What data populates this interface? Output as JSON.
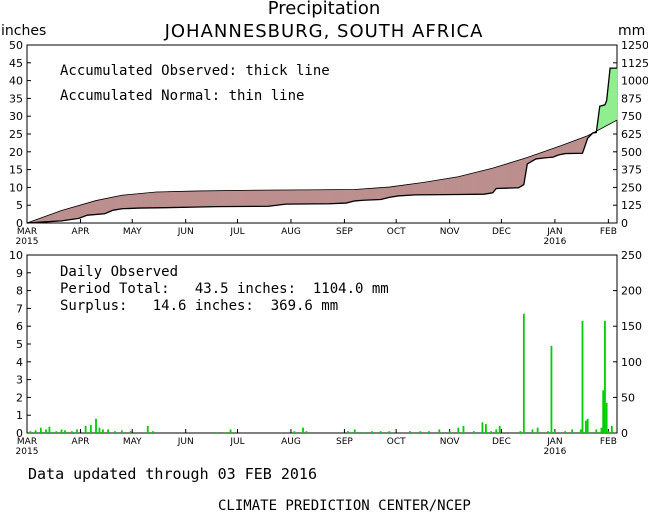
{
  "title": "Precipitation",
  "subtitle": "JOHANNESBURG, SOUTH AFRICA",
  "units_left": "inches",
  "units_right": "mm",
  "footer": {
    "updated": "Data updated through 03 FEB 2016",
    "credit": "CLIMATE PREDICTION CENTER/NCEP"
  },
  "colors": {
    "deficit_fill": "#bc8f8f",
    "surplus_fill": "#90ee90",
    "daily_bars": "#00cc00",
    "line": "#000000"
  },
  "chart_data": [
    {
      "type": "area",
      "annotations": [
        "Accumulated Observed: thick line",
        "Accumulated Normal: thin line"
      ],
      "x_tick_labels": [
        "MAR",
        "APR",
        "MAY",
        "JUN",
        "JUL",
        "AUG",
        "SEP",
        "OCT",
        "NOV",
        "DEC",
        "JAN",
        "FEB"
      ],
      "x_year_labels": [
        {
          "after": "MAR",
          "text": "2015"
        },
        {
          "after": "JAN",
          "text": "2016"
        }
      ],
      "xlim_days": [
        0,
        342
      ],
      "ylim_left": [
        0,
        50
      ],
      "ylim_right": [
        0,
        1250
      ],
      "y_ticks_left": [
        0,
        5,
        10,
        15,
        20,
        25,
        30,
        35,
        40,
        45,
        50
      ],
      "y_ticks_right": [
        0,
        125,
        250,
        375,
        500,
        625,
        750,
        875,
        1000,
        1125,
        1250
      ],
      "series": [
        {
          "role": "observed",
          "points": [
            [
              0,
              0
            ],
            [
              10,
              0.3
            ],
            [
              20,
              0.6
            ],
            [
              30,
              1.3
            ],
            [
              35,
              2.2
            ],
            [
              45,
              2.6
            ],
            [
              50,
              3.6
            ],
            [
              55,
              4.0
            ],
            [
              65,
              4.2
            ],
            [
              80,
              4.3
            ],
            [
              100,
              4.5
            ],
            [
              110,
              4.6
            ],
            [
              140,
              4.7
            ],
            [
              150,
              5.3
            ],
            [
              175,
              5.4
            ],
            [
              185,
              5.6
            ],
            [
              190,
              6.2
            ],
            [
              195,
              6.4
            ],
            [
              205,
              6.6
            ],
            [
              210,
              7.2
            ],
            [
              215,
              7.6
            ],
            [
              225,
              7.9
            ],
            [
              250,
              8.0
            ],
            [
              265,
              8.1
            ],
            [
              270,
              8.5
            ],
            [
              272,
              9.7
            ],
            [
              285,
              9.9
            ],
            [
              288,
              10.8
            ],
            [
              290,
              16.6
            ],
            [
              295,
              18.0
            ],
            [
              300,
              18.3
            ],
            [
              305,
              18.5
            ],
            [
              308,
              19.1
            ],
            [
              312,
              19.5
            ],
            [
              322,
              19.6
            ],
            [
              325,
              23.8
            ],
            [
              328,
              25.3
            ],
            [
              330,
              25.4
            ],
            [
              332,
              32.8
            ],
            [
              335,
              33.2
            ],
            [
              336,
              34.4
            ],
            [
              338,
              43.5
            ],
            [
              342,
              43.5
            ]
          ]
        },
        {
          "role": "normal",
          "points": [
            [
              0,
              0
            ],
            [
              20,
              3.5
            ],
            [
              40,
              6.3
            ],
            [
              55,
              7.8
            ],
            [
              75,
              8.7
            ],
            [
              100,
              9.0
            ],
            [
              130,
              9.2
            ],
            [
              160,
              9.3
            ],
            [
              190,
              9.4
            ],
            [
              210,
              10.1
            ],
            [
              230,
              11.4
            ],
            [
              250,
              13.0
            ],
            [
              270,
              15.4
            ],
            [
              290,
              18.4
            ],
            [
              310,
              21.8
            ],
            [
              325,
              24.5
            ],
            [
              342,
              28.9
            ]
          ]
        }
      ]
    },
    {
      "type": "bar",
      "annotations": [
        "Daily Observed",
        "Period Total:   43.5 inches:  1104.0 mm",
        "Surplus:   14.6 inches:  369.6 mm"
      ],
      "x_tick_labels": [
        "MAR",
        "APR",
        "MAY",
        "JUN",
        "JUL",
        "AUG",
        "SEP",
        "OCT",
        "NOV",
        "DEC",
        "JAN",
        "FEB"
      ],
      "x_year_labels": [
        {
          "after": "MAR",
          "text": "2015"
        },
        {
          "after": "JAN",
          "text": "2016"
        }
      ],
      "xlim_days": [
        0,
        342
      ],
      "ylim_left": [
        0,
        10
      ],
      "ylim_right": [
        0,
        250
      ],
      "y_ticks_left": [
        0,
        1,
        2,
        3,
        4,
        5,
        6,
        7,
        8,
        9,
        10
      ],
      "y_ticks_right": [
        0,
        50,
        100,
        150,
        200,
        250
      ],
      "bars": [
        [
          2,
          0.1
        ],
        [
          5,
          0.15
        ],
        [
          8,
          0.3
        ],
        [
          11,
          0.2
        ],
        [
          13,
          0.35
        ],
        [
          17,
          0.1
        ],
        [
          20,
          0.2
        ],
        [
          22,
          0.15
        ],
        [
          26,
          0.1
        ],
        [
          29,
          0.2
        ],
        [
          34,
          0.4
        ],
        [
          37,
          0.45
        ],
        [
          40,
          0.8
        ],
        [
          42,
          0.3
        ],
        [
          44,
          0.2
        ],
        [
          47,
          0.2
        ],
        [
          51,
          0.1
        ],
        [
          55,
          0.15
        ],
        [
          60,
          0.1
        ],
        [
          70,
          0.4
        ],
        [
          73,
          0.1
        ],
        [
          110,
          0.05
        ],
        [
          115,
          0.05
        ],
        [
          118,
          0.2
        ],
        [
          155,
          0.1
        ],
        [
          160,
          0.3
        ],
        [
          162,
          0.1
        ],
        [
          186,
          0.1
        ],
        [
          190,
          0.2
        ],
        [
          195,
          0.05
        ],
        [
          200,
          0.1
        ],
        [
          205,
          0.1
        ],
        [
          210,
          0.1
        ],
        [
          222,
          0.1
        ],
        [
          228,
          0.1
        ],
        [
          233,
          0.1
        ],
        [
          239,
          0.2
        ],
        [
          245,
          0.1
        ],
        [
          250,
          0.3
        ],
        [
          253,
          0.4
        ],
        [
          259,
          0.1
        ],
        [
          264,
          0.6
        ],
        [
          266,
          0.5
        ],
        [
          269,
          0.1
        ],
        [
          272,
          0.2
        ],
        [
          274,
          0.4
        ],
        [
          286,
          0.1
        ],
        [
          288,
          6.7
        ],
        [
          293,
          0.2
        ],
        [
          296,
          0.3
        ],
        [
          302,
          0.1
        ],
        [
          304,
          4.9
        ],
        [
          306,
          0.1
        ],
        [
          312,
          0.1
        ],
        [
          316,
          0.2
        ],
        [
          321,
          0.2
        ],
        [
          322,
          6.3
        ],
        [
          324,
          0.7
        ],
        [
          325,
          0.8
        ],
        [
          330,
          0.2
        ],
        [
          333,
          0.3
        ],
        [
          334,
          2.4
        ],
        [
          335,
          6.3
        ],
        [
          336,
          1.7
        ],
        [
          337,
          0.1
        ],
        [
          339,
          0.4
        ]
      ]
    }
  ]
}
